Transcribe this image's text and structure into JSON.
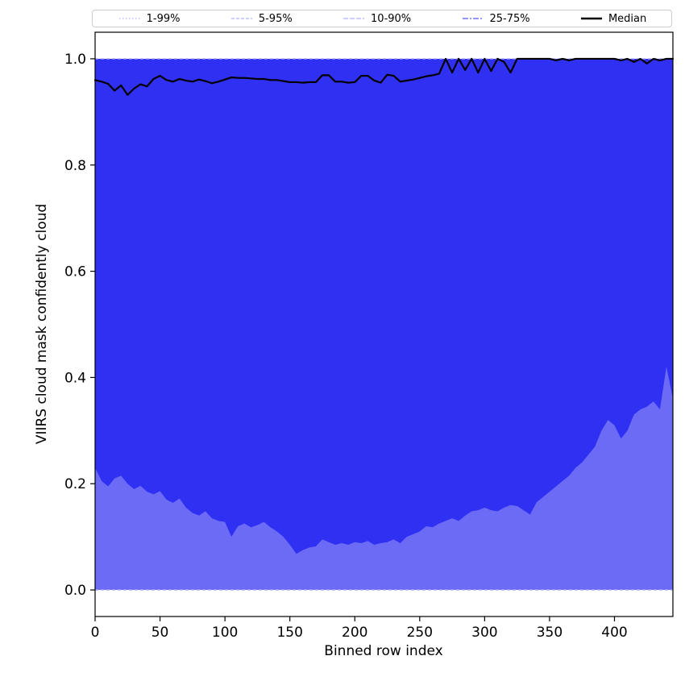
{
  "chart_data": {
    "type": "band",
    "title": "",
    "xlabel": "Binned row index",
    "ylabel": "VIIRS cloud mask confidently cloud",
    "xlim": [
      0,
      445
    ],
    "ylim": [
      -0.05,
      1.05
    ],
    "xticks": [
      0,
      50,
      100,
      150,
      200,
      250,
      300,
      350,
      400
    ],
    "xtick_labels": [
      "0",
      "50",
      "100",
      "150",
      "200",
      "250",
      "300",
      "350",
      "400"
    ],
    "yticks": [
      0.0,
      0.2,
      0.4,
      0.6,
      0.8,
      1.0
    ],
    "ytick_labels": [
      "0.0",
      "0.2",
      "0.4",
      "0.6",
      "0.8",
      "1.0"
    ],
    "grid": false,
    "legend_position": "top",
    "x": [
      0,
      5,
      10,
      15,
      20,
      25,
      30,
      35,
      40,
      45,
      50,
      55,
      60,
      65,
      70,
      75,
      80,
      85,
      90,
      95,
      100,
      105,
      110,
      115,
      120,
      125,
      130,
      135,
      140,
      145,
      150,
      155,
      160,
      165,
      170,
      175,
      180,
      185,
      190,
      195,
      200,
      205,
      210,
      215,
      220,
      225,
      230,
      235,
      240,
      245,
      250,
      255,
      260,
      265,
      270,
      275,
      280,
      285,
      290,
      295,
      300,
      305,
      310,
      315,
      320,
      325,
      330,
      335,
      340,
      345,
      350,
      355,
      360,
      365,
      370,
      375,
      380,
      385,
      390,
      395,
      400,
      405,
      410,
      415,
      420,
      425,
      430,
      435,
      440,
      445
    ],
    "median": [
      0.96,
      0.957,
      0.953,
      0.94,
      0.95,
      0.932,
      0.944,
      0.952,
      0.948,
      0.962,
      0.968,
      0.96,
      0.957,
      0.962,
      0.959,
      0.957,
      0.961,
      0.958,
      0.954,
      0.957,
      0.961,
      0.965,
      0.964,
      0.964,
      0.963,
      0.962,
      0.962,
      0.96,
      0.96,
      0.958,
      0.956,
      0.956,
      0.955,
      0.956,
      0.956,
      0.969,
      0.969,
      0.957,
      0.957,
      0.955,
      0.956,
      0.968,
      0.968,
      0.959,
      0.955,
      0.97,
      0.968,
      0.957,
      0.959,
      0.961,
      0.964,
      0.967,
      0.969,
      0.972,
      1.0,
      0.974,
      1.0,
      0.979,
      1.0,
      0.974,
      1.0,
      0.977,
      1.0,
      0.994,
      0.974,
      1.0,
      1.0,
      1.0,
      1.0,
      1.0,
      1.0,
      0.997,
      1.0,
      0.997,
      1.0,
      1.0,
      1.0,
      1.0,
      1.0,
      1.0,
      1.0,
      0.997,
      1.0,
      0.994,
      1.0,
      0.991,
      1.0,
      0.997,
      1.0,
      1.0
    ],
    "q25": [
      0.23,
      0.205,
      0.195,
      0.21,
      0.215,
      0.2,
      0.19,
      0.196,
      0.185,
      0.18,
      0.186,
      0.17,
      0.164,
      0.172,
      0.155,
      0.145,
      0.14,
      0.148,
      0.135,
      0.13,
      0.128,
      0.1,
      0.12,
      0.125,
      0.118,
      0.122,
      0.128,
      0.118,
      0.11,
      0.1,
      0.085,
      0.068,
      0.075,
      0.08,
      0.082,
      0.095,
      0.09,
      0.085,
      0.088,
      0.085,
      0.09,
      0.088,
      0.092,
      0.085,
      0.088,
      0.09,
      0.095,
      0.088,
      0.1,
      0.105,
      0.11,
      0.12,
      0.118,
      0.125,
      0.13,
      0.135,
      0.13,
      0.14,
      0.148,
      0.15,
      0.155,
      0.15,
      0.148,
      0.155,
      0.16,
      0.158,
      0.15,
      0.142,
      0.165,
      0.175,
      0.185,
      0.195,
      0.205,
      0.215,
      0.23,
      0.24,
      0.255,
      0.27,
      0.3,
      0.32,
      0.31,
      0.285,
      0.3,
      0.33,
      0.34,
      0.345,
      0.355,
      0.34,
      0.42,
      0.36
    ],
    "series": [
      {
        "name": "1-99%",
        "kind": "band",
        "low": 0.0,
        "high": 1.0,
        "color": "#0000ee",
        "alpha": 0.25,
        "dash": "1.5,2.5"
      },
      {
        "name": "5-95%",
        "kind": "band",
        "low": 0.0,
        "high": 1.0,
        "color": "#0000ee",
        "alpha": 0.25,
        "dash": "4,2"
      },
      {
        "name": "10-90%",
        "kind": "band",
        "low": 0.0,
        "high": 1.0,
        "color": "#0000ee",
        "alpha": 0.25,
        "dash": "6,2"
      },
      {
        "name": "25-75%",
        "kind": "band",
        "low": "q25",
        "high": 1.0,
        "color": "#0000ee",
        "alpha": 0.55,
        "dash": "7,2,2,2"
      },
      {
        "name": "Median",
        "kind": "line",
        "values": "median",
        "color": "#000000",
        "alpha": 1.0,
        "width": 2.2,
        "dash": ""
      }
    ],
    "edge_lines": {
      "values": [
        0.0,
        1.0
      ],
      "color": "#b0b0f5",
      "dash": "4,3",
      "width": 1.3
    }
  }
}
